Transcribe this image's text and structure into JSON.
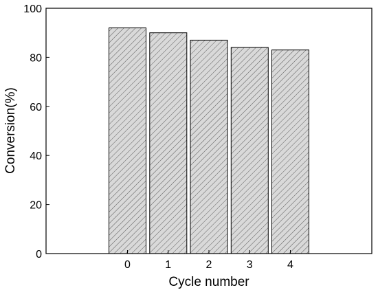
{
  "chart_data": {
    "type": "bar",
    "categories": [
      "0",
      "1",
      "2",
      "3",
      "4"
    ],
    "values": [
      92,
      90,
      87,
      84,
      83
    ],
    "title": "",
    "xlabel": "Cycle number",
    "ylabel": "Conversion(%)",
    "ylim": [
      0,
      100
    ],
    "yticks": [
      "0",
      "20",
      "40",
      "60",
      "80",
      "100"
    ],
    "xlim": [
      -2,
      6
    ],
    "grid": false,
    "legend": "none",
    "colors": {
      "bar_fill": "#d9d9d9",
      "hatch": "#5a5a5a",
      "bar_stroke": "#000000",
      "axis": "#000000"
    }
  }
}
